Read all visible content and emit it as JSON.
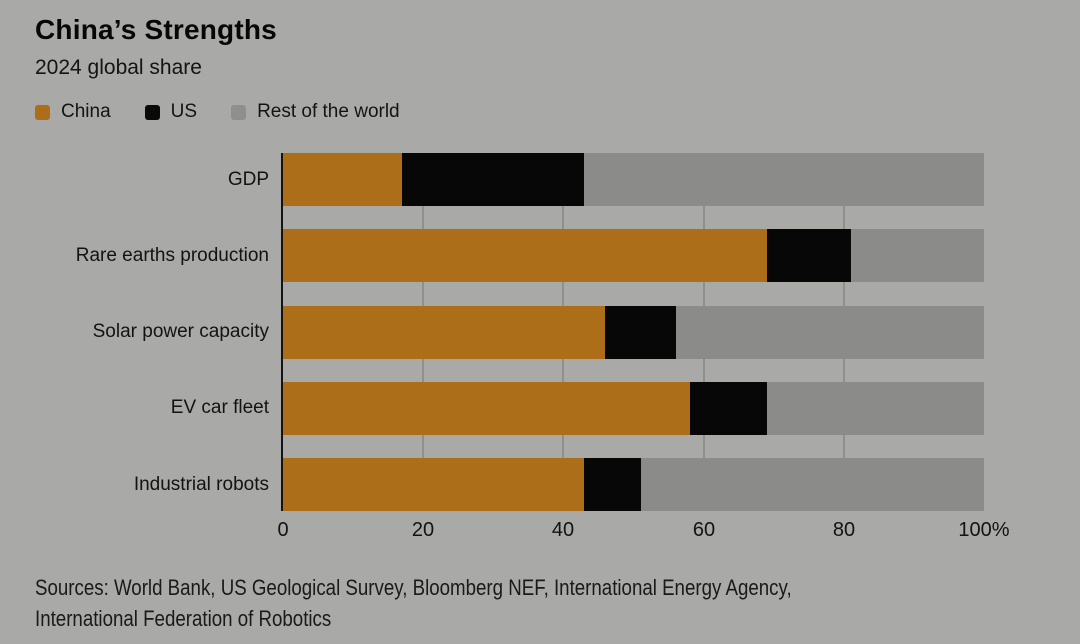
{
  "header": {
    "title": "China’s Strengths",
    "subtitle": "2024 global share"
  },
  "legend": {
    "items": [
      {
        "label": "China",
        "color": "#ac6e18"
      },
      {
        "label": "US",
        "color": "#0a0a0a"
      },
      {
        "label": "Rest of the world",
        "color": "#8f8f8d"
      }
    ]
  },
  "chart_data": {
    "type": "bar",
    "stacked": true,
    "orientation": "horizontal",
    "title": "China’s Strengths",
    "subtitle": "2024 global share",
    "categories": [
      "GDP",
      "Rare earths production",
      "Solar power capacity",
      "EV car fleet",
      "Industrial robots"
    ],
    "series": [
      {
        "name": "China",
        "color": "#ac6e18",
        "values": [
          17,
          69,
          46,
          58,
          43
        ]
      },
      {
        "name": "US",
        "color": "#070707",
        "values": [
          26,
          12,
          10,
          11,
          8
        ]
      },
      {
        "name": "Rest of the world",
        "color": "#8b8b89",
        "values": [
          57,
          19,
          44,
          31,
          49
        ]
      }
    ],
    "xlabel": "",
    "ylabel": "",
    "xlim": [
      0,
      100
    ],
    "xticks": [
      {
        "value": 0,
        "label": "0"
      },
      {
        "value": 20,
        "label": "20"
      },
      {
        "value": 40,
        "label": "40"
      },
      {
        "value": 60,
        "label": "60"
      },
      {
        "value": 80,
        "label": "80"
      },
      {
        "value": 100,
        "label": "100%"
      }
    ],
    "gridlines": [
      20,
      40,
      60,
      80
    ],
    "legend_position": "top",
    "unit": "%"
  },
  "footer": {
    "sources_line1": "Sources: World Bank, US Geological Survey, Bloomberg NEF, International Energy Agency,",
    "sources_line2": "International Federation of Robotics"
  }
}
